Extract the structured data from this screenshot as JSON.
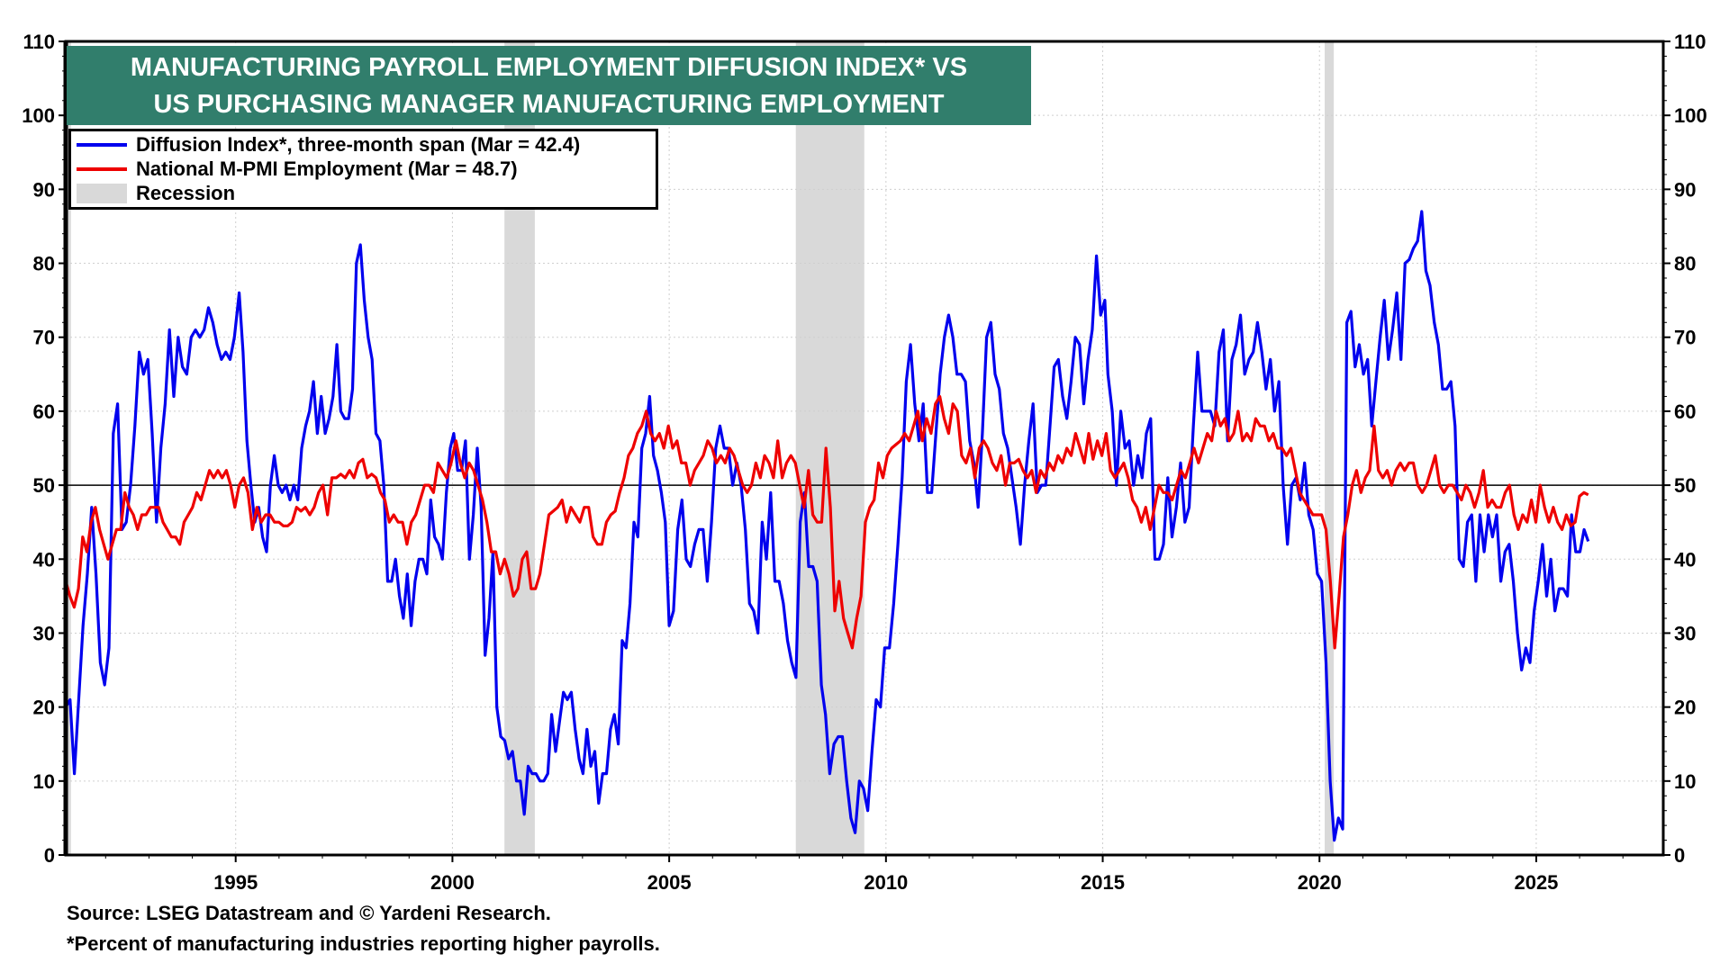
{
  "chart_data": {
    "type": "line",
    "title": [
      "MANUFACTURING PAYROLL EMPLOYMENT DIFFUSION INDEX* VS",
      "US PURCHASING MANAGER MANUFACTURING EMPLOYMENT"
    ],
    "xlabel": "",
    "ylabel": "",
    "ylim": [
      0,
      110
    ],
    "xlim": [
      1991.08,
      2027.93
    ],
    "yticks": [
      "0",
      "10",
      "20",
      "30",
      "40",
      "50",
      "60",
      "70",
      "80",
      "90",
      "100",
      "110"
    ],
    "xticks": [
      "1995",
      "2000",
      "2005",
      "2010",
      "2015",
      "2020",
      "2025"
    ],
    "reference_line": 50,
    "grid": true,
    "legend_position": "top-left",
    "legend": [
      "Diffusion Index*, three-month span (Mar  = 42.4)",
      "National M-PMI Employment (Mar  = 48.7)",
      "Recession"
    ],
    "recessions": [
      [
        1990.9,
        1991.2
      ],
      [
        2001.2,
        2001.9
      ],
      [
        2007.92,
        2009.5
      ],
      [
        2020.12,
        2020.33
      ]
    ],
    "series": [
      {
        "name": "Diffusion Index*, three-month span",
        "color": "#0000ee",
        "chunks": [
          {
            "start": 1991.08,
            "end": 1994.97,
            "values": [
              20,
              21,
              11,
              21,
              31,
              38,
              47,
              38,
              26,
              23,
              28,
              57,
              61,
              44,
              45,
              50,
              58,
              68,
              65,
              67,
              57,
              45,
              55,
              61,
              71,
              62,
              70,
              66,
              65,
              70,
              71,
              70,
              71,
              74,
              72,
              69,
              67,
              68,
              67,
              70
            ]
          },
          {
            "start": 1995.08,
            "end": 1999.95,
            "values": [
              76,
              68,
              56,
              50,
              45,
              47,
              43,
              41,
              50,
              54,
              50,
              49,
              50,
              48,
              50,
              48,
              55,
              58,
              60,
              64,
              57,
              62,
              57,
              59,
              62,
              69,
              60,
              59,
              59,
              63,
              80,
              82.5,
              75,
              70,
              67,
              57,
              56,
              50,
              37,
              37,
              40,
              35,
              32,
              38,
              31,
              37,
              40,
              40,
              38,
              48,
              43,
              42,
              40,
              49,
              55
            ]
          },
          {
            "start": 2000.03,
            "end": 2005.0,
            "values": [
              57,
              52,
              52,
              56,
              40,
              46,
              55,
              47,
              27,
              32,
              41,
              20,
              16,
              15.5,
              13,
              14,
              10,
              10,
              5.5,
              12,
              11,
              11,
              10,
              10,
              11,
              19,
              14,
              18,
              22,
              21,
              22,
              17,
              13,
              11,
              17,
              12,
              14,
              7,
              11,
              11,
              17,
              19,
              15,
              29,
              28,
              34,
              45,
              43,
              55,
              57,
              62,
              54,
              52,
              49,
              45,
              31
            ]
          },
          {
            "start": 2005.1,
            "end": 2009.97,
            "values": [
              33,
              44,
              48,
              40,
              39,
              42,
              44,
              44,
              37,
              45,
              55,
              58,
              55,
              55,
              50,
              53,
              50,
              44,
              34,
              33,
              30,
              45,
              40,
              49,
              37,
              37,
              34,
              29,
              26,
              24,
              45,
              49,
              39,
              39,
              37,
              23,
              19,
              11,
              15,
              16,
              16,
              10,
              5,
              3,
              10,
              9,
              6,
              14,
              21,
              20,
              28
            ]
          },
          {
            "start": 2010.08,
            "end": 2015.05,
            "values": [
              28,
              34,
              42,
              51,
              64,
              69,
              61,
              56,
              61,
              49,
              49,
              57,
              65,
              70,
              73,
              70,
              65,
              65,
              64,
              56,
              53,
              47,
              57,
              70,
              72,
              65,
              63,
              57,
              55,
              51,
              47,
              42,
              50,
              56,
              61,
              49,
              50,
              50,
              58,
              66,
              67,
              62,
              59,
              64,
              70,
              69,
              61,
              67,
              71,
              81,
              73,
              75
            ]
          },
          {
            "start": 2015.12,
            "end": 2020.05,
            "values": [
              65,
              60,
              50,
              60,
              55,
              56,
              50,
              54,
              51,
              57,
              59,
              40,
              40,
              42,
              51,
              43,
              47,
              53,
              45,
              47,
              58,
              68,
              60,
              60,
              60,
              58,
              68,
              71,
              56,
              67,
              69,
              73,
              65,
              67,
              68,
              72,
              68,
              63,
              67,
              60,
              64,
              50,
              42,
              50,
              51,
              48,
              53,
              46,
              44,
              38,
              37
            ]
          },
          {
            "start": 2020.15,
            "end": 2026.2,
            "values": [
              26,
              10,
              2,
              5,
              3.5,
              72,
              73.5,
              66,
              69,
              65,
              67,
              58,
              64,
              70,
              75,
              67,
              71,
              76,
              67,
              80,
              80.5,
              82,
              83,
              87,
              79,
              77,
              72,
              69,
              63,
              63,
              64,
              58,
              40,
              39,
              45,
              46,
              37,
              46,
              41,
              46,
              43,
              46,
              37,
              41,
              42,
              37,
              30,
              25,
              28,
              26,
              33,
              37,
              42,
              35,
              40,
              33,
              36,
              36,
              35,
              46,
              41,
              41,
              44,
              42.4
            ]
          }
        ]
      },
      {
        "name": "National M-PMI Employment",
        "color": "#ee0000",
        "chunks": [
          {
            "start": 1991.08,
            "end": 1994.98,
            "values": [
              37,
              35,
              33.5,
              36,
              43,
              41,
              45,
              47,
              44,
              42,
              40,
              42,
              44,
              44,
              49,
              47,
              46,
              44,
              46,
              46,
              47,
              47,
              47,
              45,
              44,
              43,
              43,
              42,
              45,
              46,
              47,
              49,
              48,
              50,
              52,
              51,
              52,
              51,
              52,
              50,
              47
            ]
          },
          {
            "start": 1995.08,
            "end": 1999.97,
            "values": [
              50,
              51,
              49,
              44,
              47,
              45,
              46,
              46,
              45,
              45,
              44.5,
              44.5,
              45,
              47,
              46.5,
              47,
              46,
              47,
              49,
              50,
              46,
              51,
              51,
              51.5,
              51,
              52,
              51,
              53,
              53.5,
              51,
              51.5,
              51,
              49,
              48,
              45,
              46,
              45,
              45,
              42,
              45,
              46,
              48,
              50,
              50,
              49,
              53,
              52,
              51,
              53
            ]
          },
          {
            "start": 2000.08,
            "end": 2004.98,
            "values": [
              56,
              53,
              51,
              53,
              52,
              50,
              48,
              45,
              41,
              41,
              38,
              40,
              38,
              35,
              36,
              40,
              41,
              36,
              36,
              38,
              42,
              46,
              46.5,
              47,
              48,
              45,
              47,
              46,
              45,
              47,
              47,
              43,
              42,
              42,
              45,
              46,
              46.5,
              49,
              51,
              54,
              55,
              57,
              58,
              60,
              57,
              56,
              57,
              55,
              58
            ]
          },
          {
            "start": 2005.08,
            "end": 2009.93,
            "values": [
              55,
              56,
              53,
              53,
              50,
              52,
              53,
              54,
              56,
              55,
              53,
              54,
              53,
              55,
              54,
              52,
              50,
              49,
              50,
              53,
              51,
              54,
              53,
              51,
              56,
              51,
              53,
              54,
              53,
              50,
              47,
              52,
              46,
              45,
              45,
              55,
              47,
              33,
              37,
              32,
              30,
              28,
              32,
              35,
              45,
              47,
              48,
              53,
              51
            ]
          },
          {
            "start": 2010.03,
            "end": 2014.98,
            "values": [
              54,
              55,
              55.5,
              56,
              57,
              56,
              58,
              60,
              56,
              59,
              57,
              61,
              62,
              59,
              57,
              61,
              60,
              54,
              53,
              55,
              51,
              55,
              56,
              55,
              53,
              52,
              54,
              50,
              53,
              53,
              53.5,
              52,
              51,
              52,
              49,
              52,
              51,
              53,
              52,
              54,
              53,
              55,
              54,
              57,
              55,
              53,
              57,
              53.5,
              56,
              54
            ]
          },
          {
            "start": 2015.08,
            "end": 2020.05,
            "values": [
              57,
              52,
              51,
              52,
              53,
              51,
              48,
              47,
              45,
              47,
              44,
              47,
              50,
              49,
              49,
              48,
              50,
              52,
              51,
              53,
              55,
              53,
              55,
              57,
              56,
              60,
              58,
              59,
              56,
              57,
              60,
              56,
              57,
              56,
              59,
              58,
              58,
              56,
              57,
              55,
              55,
              54,
              55,
              52,
              49,
              48,
              47,
              46,
              46,
              46
            ]
          },
          {
            "start": 2020.15,
            "end": 2026.2,
            "values": [
              44,
              37,
              28,
              35,
              43,
              46,
              50,
              52,
              49,
              51,
              52,
              58,
              52,
              51,
              52,
              50,
              52,
              53,
              52,
              53,
              53,
              50,
              49,
              50,
              52,
              54,
              50,
              49,
              50,
              50,
              49,
              48,
              50,
              49,
              47,
              49,
              52,
              47,
              48,
              47,
              47,
              49,
              50,
              46,
              44,
              46,
              45,
              48,
              45,
              50,
              47,
              45,
              47,
              45,
              44,
              46,
              44.5,
              45,
              48.5,
              49,
              48.7
            ]
          }
        ]
      }
    ],
    "recession_color": "#d9d9d9",
    "title_bg": "#317e6c"
  },
  "footnotes": {
    "source": "Source: LSEG Datastream and © Yardeni Research.",
    "note": "*Percent of manufacturing industries reporting higher payrolls."
  }
}
